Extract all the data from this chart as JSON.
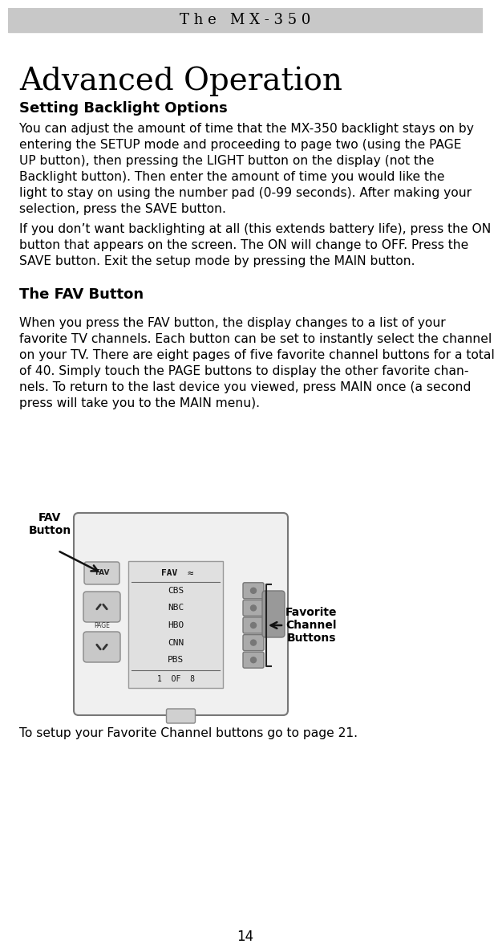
{
  "page_bg": "#ffffff",
  "header_bg": "#c8c8c8",
  "header_text": "T h e   M X - 3 5 0",
  "header_text_color": "#000000",
  "page_title": "Advanced Operation",
  "section1_heading": "Setting Backlight Options",
  "section1_para1": "You can adjust the amount of time that the MX-350 backlight stays on by\nentering the SETUP mode and proceeding to page two (using the PAGE\nUP button), then pressing the LIGHT button on the display (not the\nBacklight button). Then enter the amount of time you would like the\nlight to stay on using the number pad (0-99 seconds). After making your\nselection, press the SAVE button.",
  "section1_para2": "If you don’t want backlighting at all (this extends battery life), press the ON\nbutton that appears on the screen. The ON will change to OFF. Press the\nSAVE button. Exit the setup mode by pressing the MAIN button.",
  "section2_heading": "The FAV Button",
  "section2_para1": "When you press the FAV button, the display changes to a list of your\nfavorite TV channels. Each button can be set to instantly select the channel\non your TV. There are eight pages of five favorite channel buttons for a total\nof 40. Simply touch the PAGE buttons to display the other favorite chan-\nnels. To return to the last device you viewed, press MAIN once (a second\npress will take you to the MAIN menu).",
  "section2_para2": "To setup your Favorite Channel buttons go to page 21.",
  "fav_label": "FAV\nButton",
  "favorite_label": "Favorite\nChannel\nButtons",
  "page_number": "14",
  "text_color": "#000000",
  "body_font_size": 11.2,
  "heading_font_size": 13.0,
  "title_font_size": 28.0,
  "channels": [
    "CBS",
    "NBC",
    "HBO",
    "CNN",
    "PBS"
  ],
  "remote_body_color": "#f0f0f0",
  "remote_edge_color": "#888888",
  "screen_bg": "#e0e0e0",
  "btn_color": "#aaaaaa",
  "btn_dark": "#888888"
}
